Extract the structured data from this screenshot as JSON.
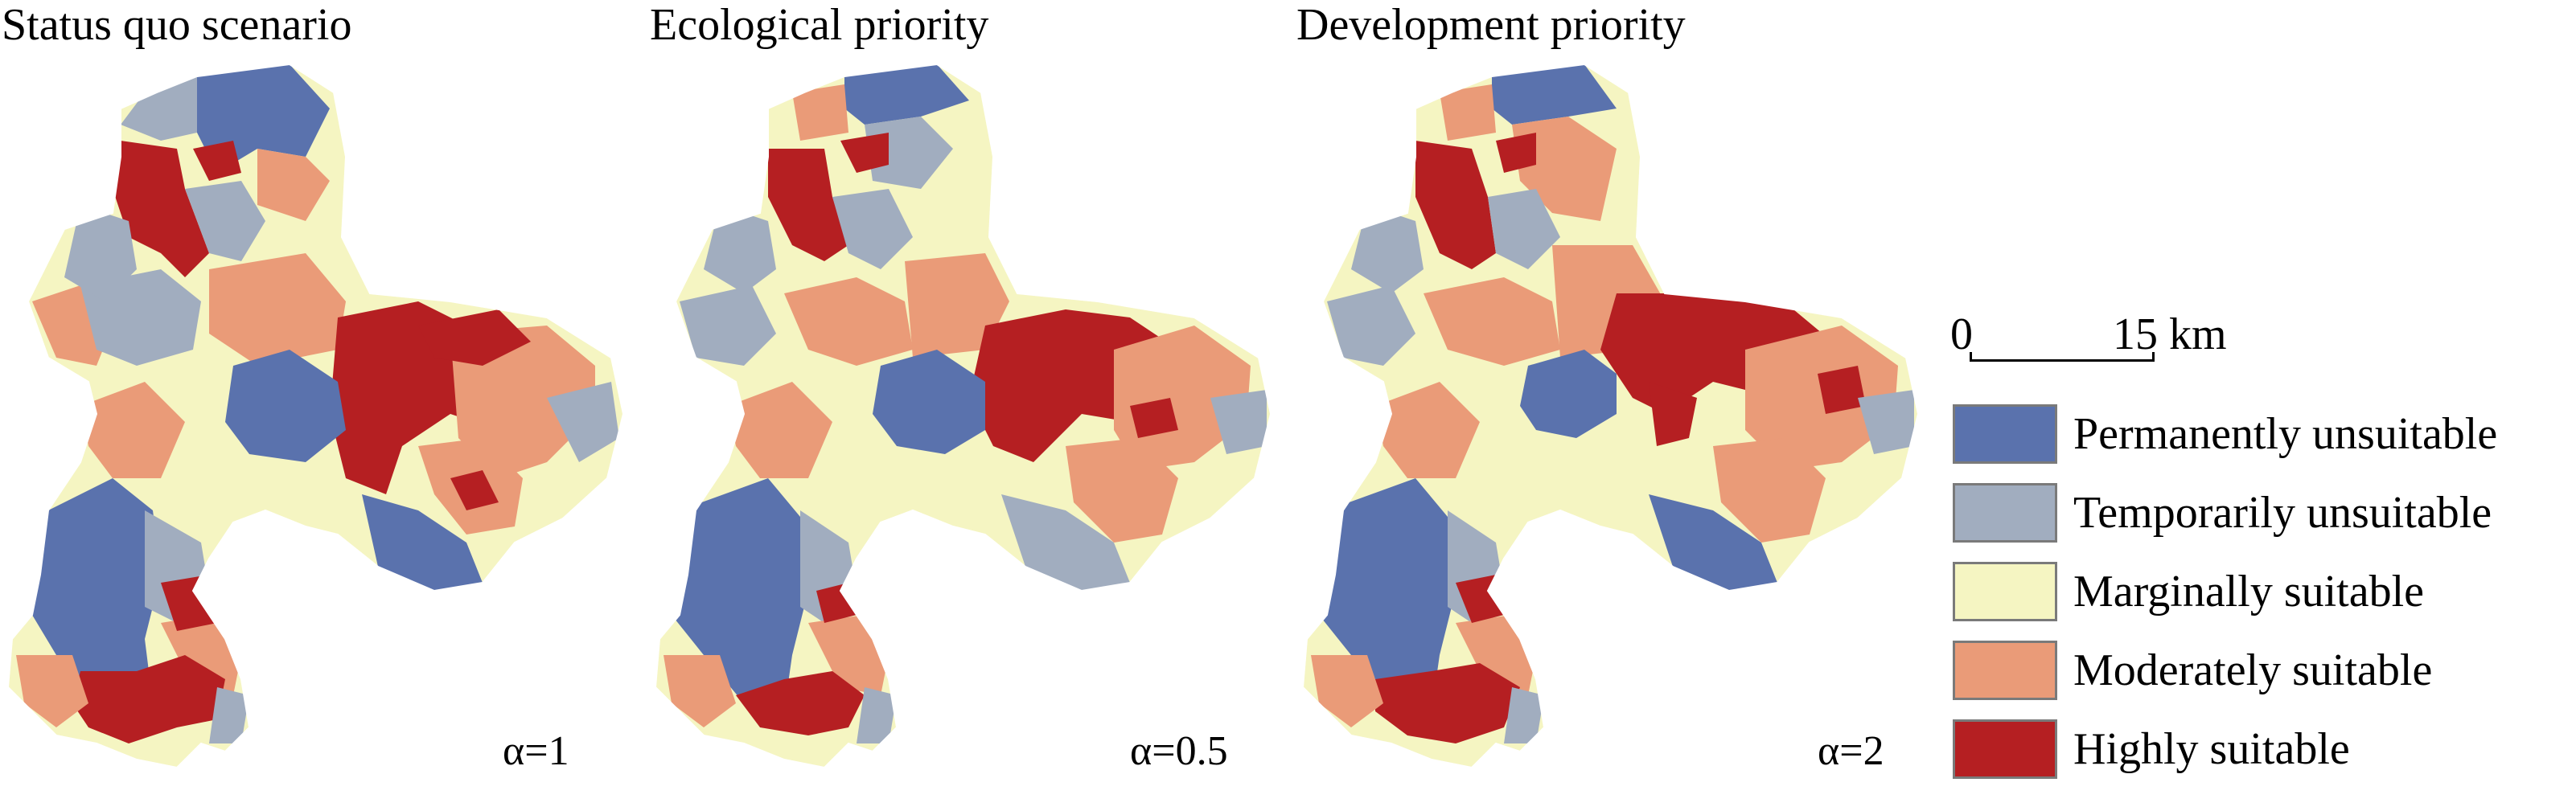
{
  "panels": [
    {
      "title": "Status quo scenario",
      "alpha": "α=1"
    },
    {
      "title": "Ecological priority",
      "alpha": "α=0.5"
    },
    {
      "title": "Development priority",
      "alpha": "α=2"
    }
  ],
  "scale_bar": {
    "start": "0",
    "end": "15 km"
  },
  "legend": [
    {
      "label": "Permanently unsuitable",
      "color": "#5a72ad"
    },
    {
      "label": "Temporarily unsuitable",
      "color": "#a1adbf"
    },
    {
      "label": "Marginally suitable",
      "color": "#f5f5c2"
    },
    {
      "label": "Moderately suitable",
      "color": "#ea9b78"
    },
    {
      "label": "Highly suitable",
      "color": "#b51f22"
    }
  ]
}
